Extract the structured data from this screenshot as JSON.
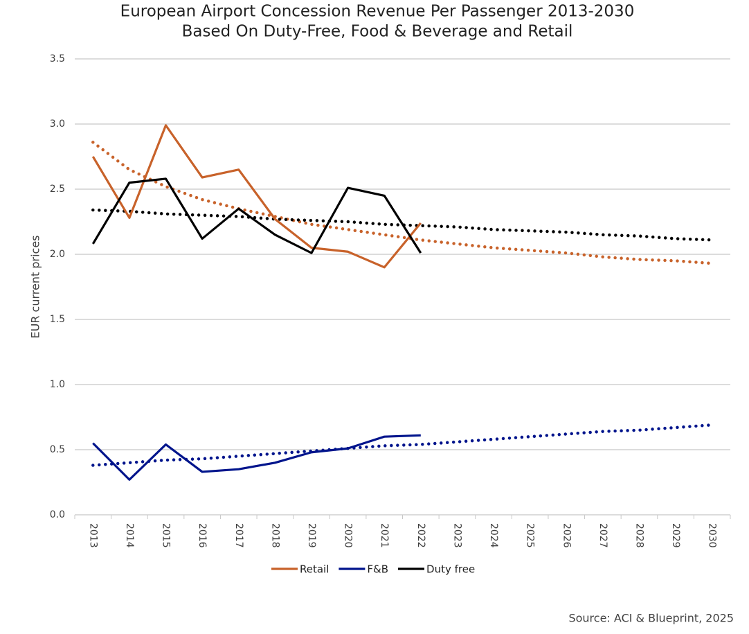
{
  "chart_data": {
    "type": "line",
    "title": "European Airport Concession Revenue Per Passenger 2013-2030",
    "subtitle": "Based On Duty-Free, Food & Beverage and Retail",
    "y_label": "EUR current prices",
    "source": "Source: ACI & Blueprint, 2025",
    "categories": [
      "2013",
      "2014",
      "2015",
      "2016",
      "2017",
      "2018",
      "2019",
      "2020",
      "2021",
      "2022",
      "2023",
      "2024",
      "2025",
      "2026",
      "2027",
      "2028",
      "2029",
      "2030"
    ],
    "series": [
      {
        "name": "Retail",
        "color": "#c8622a",
        "values": [
          2.75,
          2.28,
          2.99,
          2.59,
          2.65,
          2.27,
          2.05,
          2.02,
          1.9,
          2.24,
          null,
          null,
          null,
          null,
          null,
          null,
          null,
          null
        ],
        "trend": [
          2.86,
          2.65,
          2.52,
          2.42,
          2.35,
          2.29,
          2.23,
          2.19,
          2.15,
          2.11,
          2.08,
          2.05,
          2.03,
          2.01,
          1.98,
          1.96,
          1.95,
          1.93
        ]
      },
      {
        "name": "F&B",
        "color": "#00148c",
        "values": [
          0.55,
          0.27,
          0.54,
          0.33,
          0.35,
          0.4,
          0.48,
          0.51,
          0.6,
          0.61,
          null,
          null,
          null,
          null,
          null,
          null,
          null,
          null
        ],
        "trend": [
          0.38,
          0.4,
          0.42,
          0.43,
          0.45,
          0.47,
          0.49,
          0.51,
          0.53,
          0.54,
          0.56,
          0.58,
          0.6,
          0.62,
          0.64,
          0.65,
          0.67,
          0.69
        ]
      },
      {
        "name": "Duty free",
        "color": "#000000",
        "values": [
          2.08,
          2.55,
          2.58,
          2.12,
          2.35,
          2.15,
          2.01,
          2.51,
          2.45,
          2.01,
          null,
          null,
          null,
          null,
          null,
          null,
          null,
          null
        ],
        "trend": [
          2.34,
          2.33,
          2.31,
          2.3,
          2.29,
          2.27,
          2.26,
          2.25,
          2.23,
          2.22,
          2.21,
          2.19,
          2.18,
          2.17,
          2.15,
          2.14,
          2.12,
          2.11
        ]
      }
    ],
    "ylim": [
      0,
      3.5
    ],
    "yticks": [
      {
        "value": 0,
        "label": "0.0"
      },
      0.5,
      {
        "value": 1,
        "label": "1.0"
      },
      1.5,
      {
        "value": 2,
        "label": "2.0"
      },
      2.5,
      {
        "value": 3,
        "label": "3.0"
      },
      3.5
    ],
    "grid": true,
    "legend": "bottom"
  }
}
